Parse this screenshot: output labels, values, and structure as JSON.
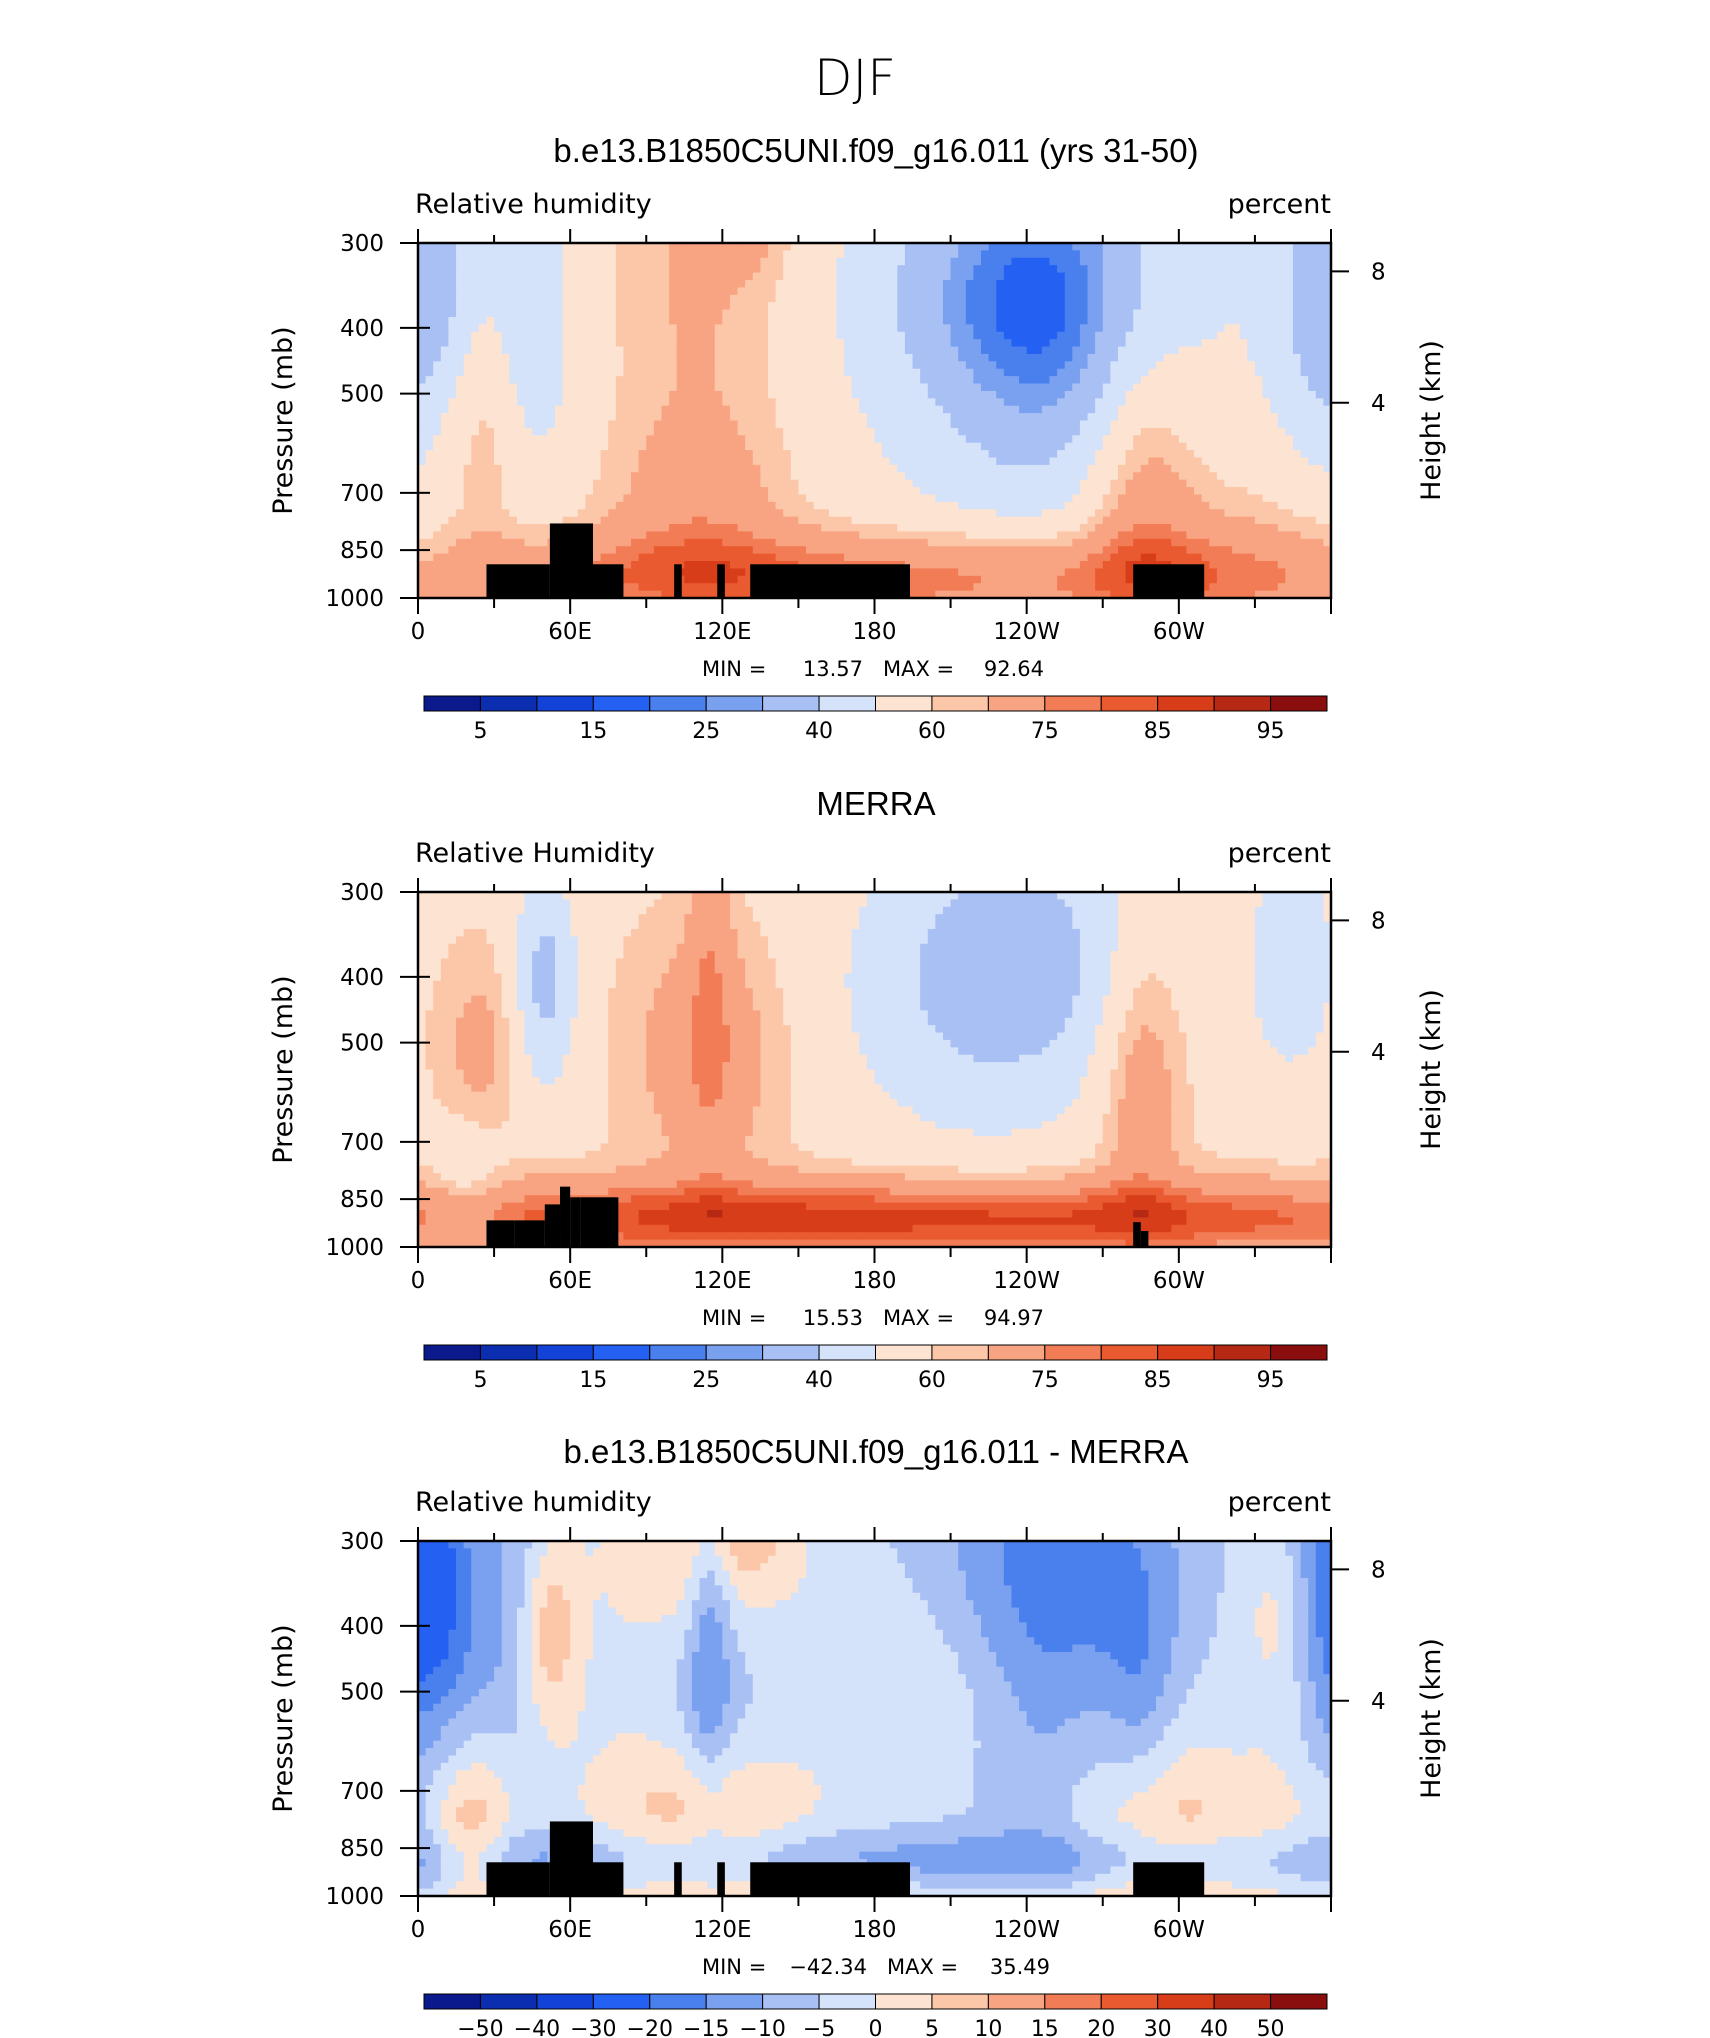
{
  "figure": {
    "title": "DJF"
  },
  "colors": {
    "main_scale": [
      "#0a1a8c",
      "#0b2eb0",
      "#1242d8",
      "#2460f2",
      "#4a80ee",
      "#7aa0f0",
      "#a8c0f4",
      "#d4e2fa",
      "#fde4d2",
      "#fcc6a8",
      "#f8a482",
      "#f27c55",
      "#ea5a30",
      "#d83d1a",
      "#b52814",
      "#8a0e0e"
    ],
    "diff_scale": [
      "#0a1a8c",
      "#0b2eb0",
      "#1242d8",
      "#2460f2",
      "#4a80ee",
      "#7aa0f0",
      "#a8c0f4",
      "#d4e2fa",
      "#fde4d2",
      "#fcc6a8",
      "#f8a482",
      "#f27c55",
      "#ea5a30",
      "#d83d1a",
      "#b52814",
      "#8a0e0e"
    ],
    "terrain": "#000000"
  },
  "chart_data": [
    {
      "type": "heatmap",
      "title": "b.e13.B1850C5UNI.f09_g16.011 (yrs 31-50)",
      "left_label": "Relative humidity",
      "right_label": "percent",
      "ylabel": "Pressure (mb)",
      "ylabel_right": "Height (km)",
      "x_ticks": [
        "0",
        "60E",
        "120E",
        "180",
        "120W",
        "60W"
      ],
      "y_ticks": [
        "300",
        "400",
        "500",
        "700",
        "850",
        "1000"
      ],
      "y_right_ticks": [
        "8",
        "4"
      ],
      "xlim": [
        0,
        360
      ],
      "ylim": [
        1000,
        300
      ],
      "y_scale": "log",
      "min_label": "MIN =",
      "min": "13.57",
      "max_label": "MAX =",
      "max": "92.64",
      "colorbar_labels": [
        "5",
        "15",
        "25",
        "40",
        "60",
        "75",
        "85",
        "95"
      ],
      "field": "model"
    },
    {
      "type": "heatmap",
      "title": "MERRA",
      "left_label": "Relative Humidity",
      "right_label": "percent",
      "ylabel": "Pressure (mb)",
      "ylabel_right": "Height (km)",
      "x_ticks": [
        "0",
        "60E",
        "120E",
        "180",
        "120W",
        "60W"
      ],
      "y_ticks": [
        "300",
        "400",
        "500",
        "700",
        "850",
        "1000"
      ],
      "y_right_ticks": [
        "8",
        "4"
      ],
      "xlim": [
        0,
        360
      ],
      "ylim": [
        1000,
        300
      ],
      "y_scale": "log",
      "min_label": "MIN =",
      "min": "15.53",
      "max_label": "MAX =",
      "max": "94.97",
      "colorbar_labels": [
        "5",
        "15",
        "25",
        "40",
        "60",
        "75",
        "85",
        "95"
      ],
      "field": "obs"
    },
    {
      "type": "heatmap",
      "title": "b.e13.B1850C5UNI.f09_g16.011 - MERRA",
      "left_label": "Relative humidity",
      "right_label": "percent",
      "ylabel": "Pressure (mb)",
      "ylabel_right": "Height (km)",
      "x_ticks": [
        "0",
        "60E",
        "120E",
        "180",
        "120W",
        "60W"
      ],
      "y_ticks": [
        "300",
        "400",
        "500",
        "700",
        "850",
        "1000"
      ],
      "y_right_ticks": [
        "8",
        "4"
      ],
      "xlim": [
        0,
        360
      ],
      "ylim": [
        1000,
        300
      ],
      "y_scale": "log",
      "min_label": "MIN =",
      "min": "−42.34",
      "max_label": "MAX =",
      "max": "35.49",
      "colorbar_labels": [
        "−50",
        "−40",
        "−30",
        "−20",
        "−15",
        "−10",
        "−5",
        "0",
        "5",
        "10",
        "15",
        "20",
        "30",
        "40",
        "50"
      ],
      "field": "diff"
    }
  ]
}
